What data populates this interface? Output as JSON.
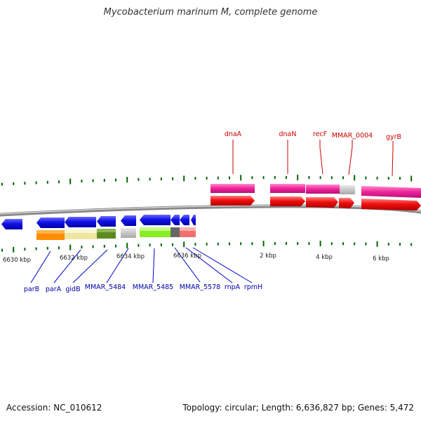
{
  "title": "Mycobacterium marinum M, complete genome",
  "footer": {
    "accession": "Accession: NC_010612",
    "summary": "Topology: circular; Length: 6,636,827 bp; Genes: 5,472"
  },
  "scale_labels": [
    "6630 kbp",
    "6632 kbp",
    "6634 kbp",
    "6636 kbp",
    "2 kbp",
    "4 kbp",
    "6 kbp"
  ],
  "forward_genes": [
    "dnaA",
    "dnaN",
    "recF",
    "MMAR_0004",
    "gyrB"
  ],
  "reverse_genes": [
    "parB",
    "parA",
    "gidB",
    "MMAR_5484",
    "MMAR_5485",
    "MMAR_5578",
    "rnpA",
    "rpmH"
  ],
  "colors": {
    "forward_label": "#cc0000",
    "reverse_label": "#0000aa",
    "gene_blue": "#1010e0",
    "gene_red": "#ee1111",
    "gene_pink": "#ee2299",
    "tick": "#006600",
    "backbone": "#777777"
  }
}
